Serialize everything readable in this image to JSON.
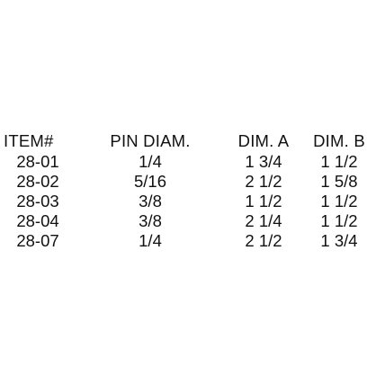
{
  "table": {
    "headers": [
      "ITEM#",
      "PIN DIAM.",
      "DIM. A",
      "DIM. B"
    ],
    "rows": [
      [
        "28-01",
        "1/4",
        "1 3/4",
        "1 1/2"
      ],
      [
        "28-02",
        "5/16",
        "2 1/2",
        "1 5/8"
      ],
      [
        "28-03",
        "3/8",
        "1 1/2",
        "1 1/2"
      ],
      [
        "28-04",
        "3/8",
        "2 1/4",
        "1 1/2"
      ],
      [
        "28-07",
        "1/4",
        "2 1/2",
        "1 3/4"
      ]
    ]
  }
}
